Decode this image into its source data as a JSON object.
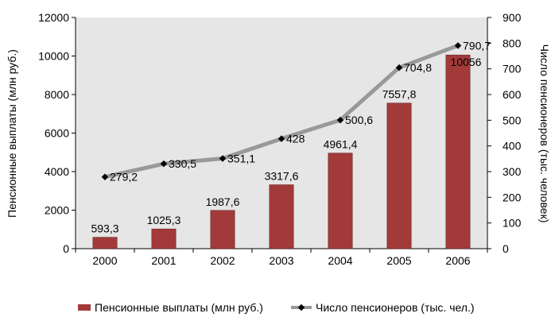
{
  "chart_data": {
    "type": "bar",
    "categories": [
      "2000",
      "2001",
      "2002",
      "2003",
      "2004",
      "2005",
      "2006"
    ],
    "series": [
      {
        "name": "Пенсионные выплаты (млн руб.)",
        "type": "bar",
        "axis": "left",
        "color": "#a33a3a",
        "values": [
          593.3,
          1025.3,
          1987.6,
          3317.6,
          4961.4,
          7557.8,
          10056
        ],
        "labels": [
          "593,3",
          "1025,3",
          "1987,6",
          "3317,6",
          "4961,4",
          "7557,8",
          "10056"
        ]
      },
      {
        "name": "Число пенсионеров (тыс. чел.)",
        "type": "line",
        "axis": "right",
        "color": "#999999",
        "marker_color": "#000000",
        "values": [
          279.2,
          330.5,
          351.1,
          428,
          500.6,
          704.8,
          790.7
        ],
        "labels": [
          "279,2",
          "330,5",
          "351,1",
          "428",
          "500,6",
          "704,8",
          "790,7"
        ]
      }
    ],
    "ylabel_left": "Пенсионные выплаты (млн руб.)",
    "ylabel_right": "Число пенсионеров (тыс. человек)",
    "ylim_left": [
      0,
      12000
    ],
    "yticks_left": [
      "0",
      "2000",
      "4000",
      "6000",
      "8000",
      "10000",
      "12000"
    ],
    "ylim_right": [
      0,
      900
    ],
    "yticks_right": [
      "0",
      "100",
      "200",
      "300",
      "400",
      "500",
      "600",
      "700",
      "800",
      "900"
    ],
    "plot_background": "#e6e6e6",
    "grid": false,
    "legend_position": "bottom"
  }
}
